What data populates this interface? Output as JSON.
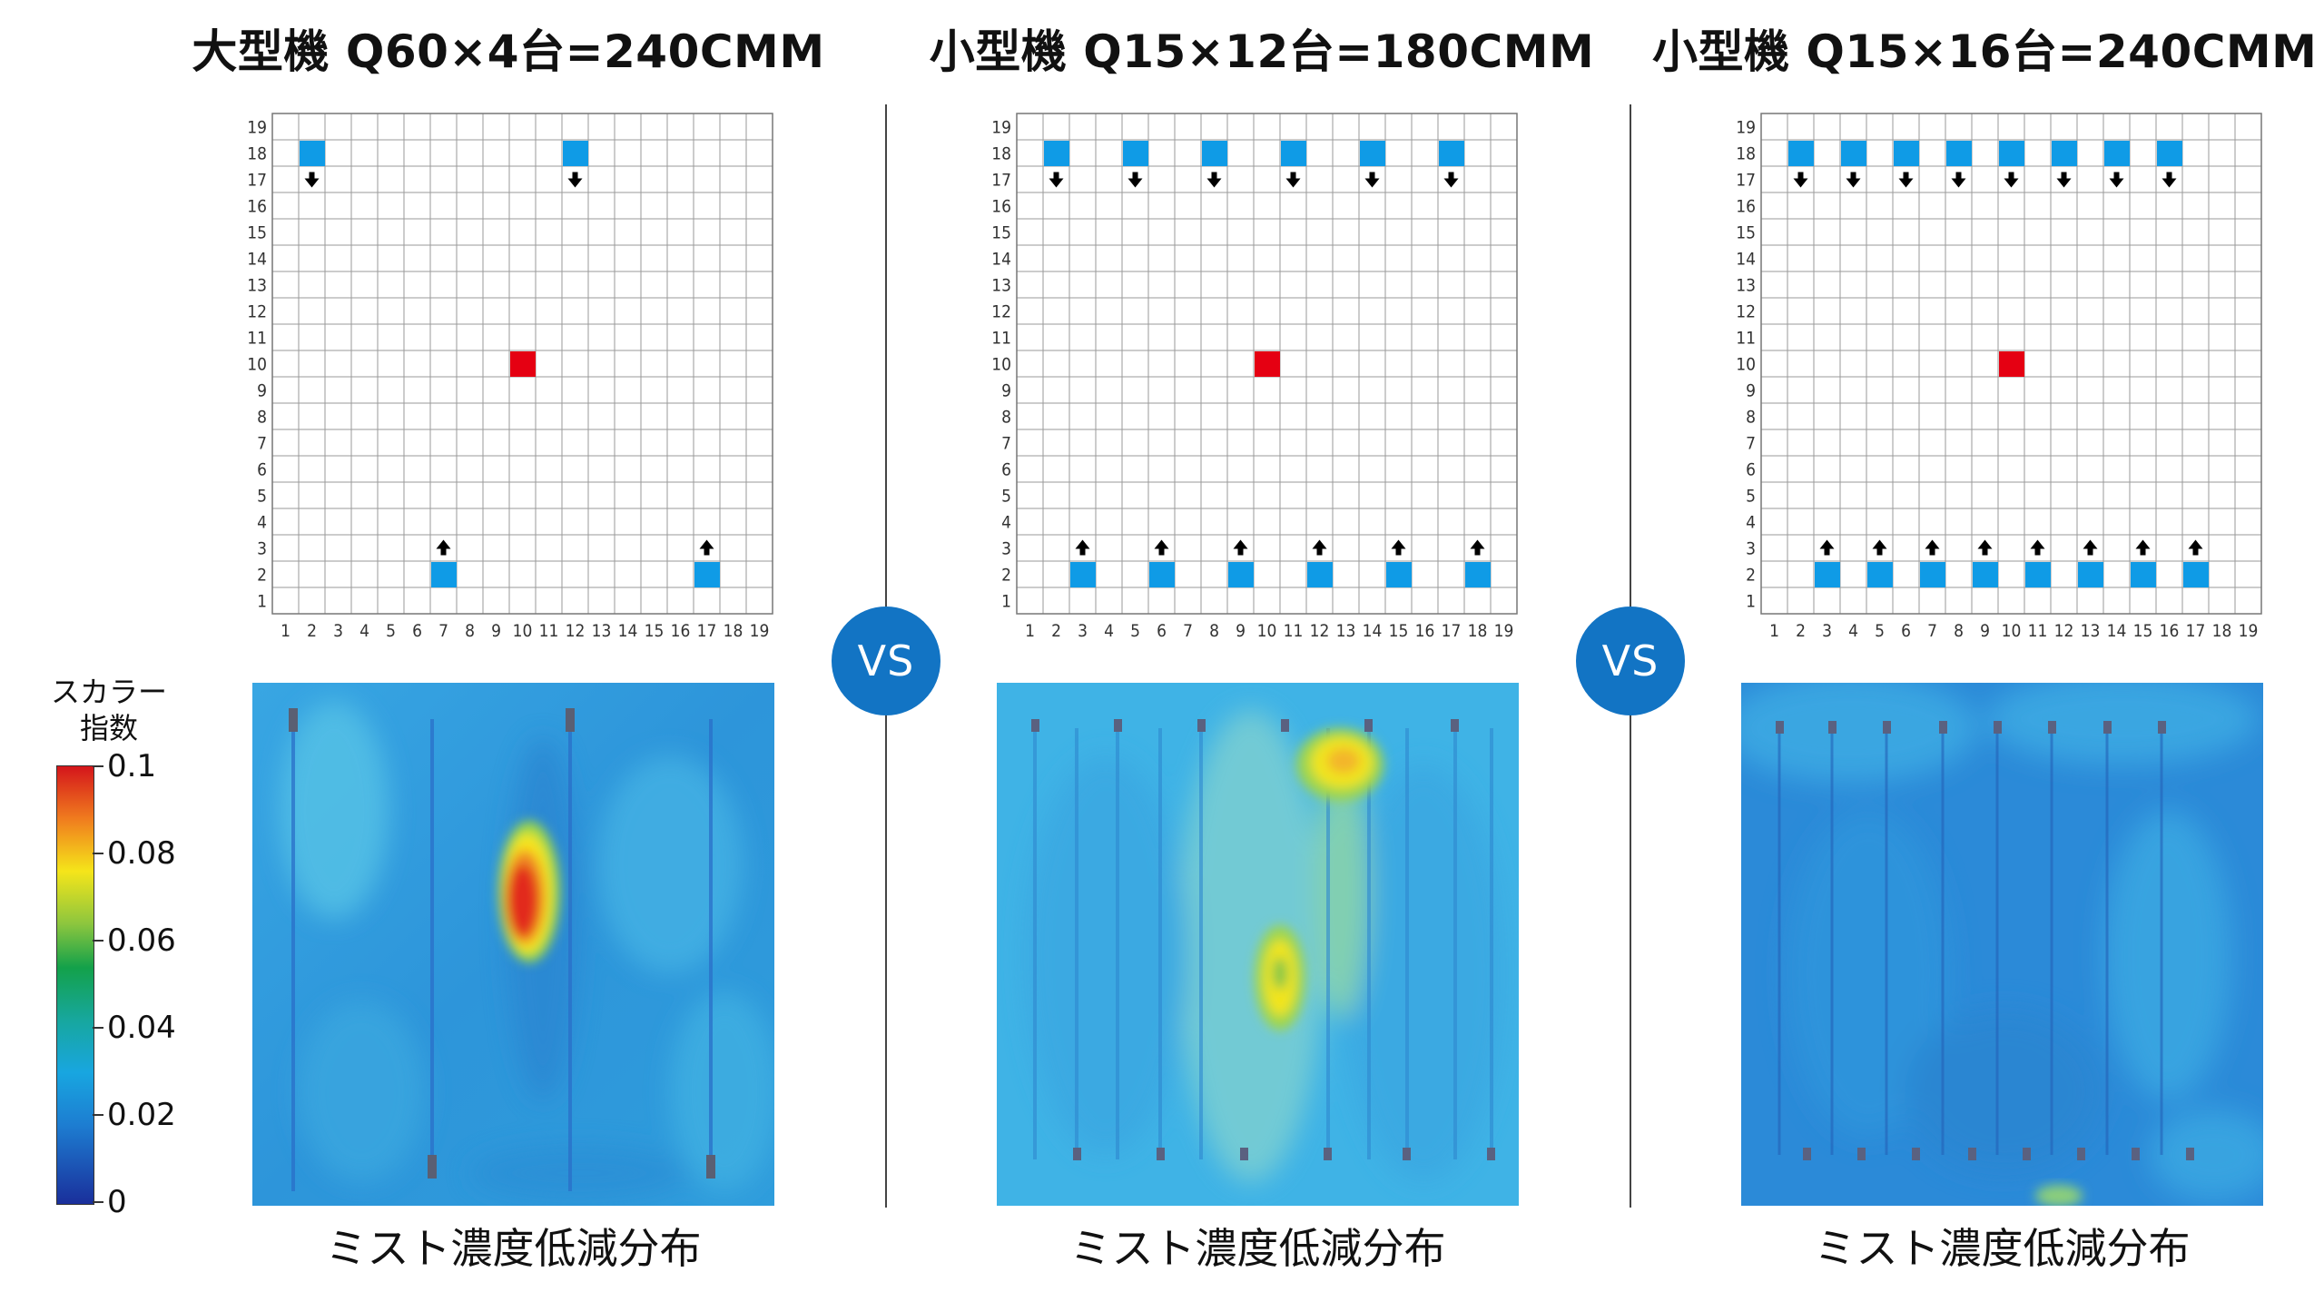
{
  "panels": [
    {
      "title": "大型機 Q60×4台=240CMM",
      "caption": "ミスト濃度低減分布",
      "blue_top": [
        2,
        12
      ],
      "blue_bottom": [
        7,
        17
      ],
      "red_cell": [
        10,
        10
      ]
    },
    {
      "title": "小型機 Q15×12台=180CMM",
      "caption": "ミスト濃度低減分布",
      "blue_top": [
        2,
        5,
        8,
        11,
        14,
        17
      ],
      "blue_bottom": [
        3,
        6,
        9,
        12,
        15,
        18
      ],
      "red_cell": [
        10,
        10
      ]
    },
    {
      "title": "小型機 Q15×16台=240CMM",
      "caption": "ミスト濃度低減分布",
      "blue_top": [
        2,
        4,
        6,
        8,
        10,
        12,
        14,
        16
      ],
      "blue_bottom": [
        3,
        5,
        7,
        9,
        11,
        13,
        15,
        17
      ],
      "red_cell": [
        10,
        10
      ]
    }
  ],
  "grid": {
    "x_labels": [
      "1",
      "2",
      "3",
      "4",
      "5",
      "6",
      "7",
      "8",
      "9",
      "10",
      "11",
      "12",
      "13",
      "14",
      "15",
      "16",
      "17",
      "18",
      "19"
    ],
    "y_labels": [
      "19",
      "18",
      "17",
      "16",
      "15",
      "14",
      "13",
      "12",
      "11",
      "10",
      "9",
      "8",
      "7",
      "6",
      "5",
      "4",
      "3",
      "2",
      "1"
    ]
  },
  "vs_label": "VS",
  "legend": {
    "title_line1": "スカラー",
    "title_line2": "指数",
    "ticks": [
      "0.1",
      "0.08",
      "0.06",
      "0.04",
      "0.02",
      "0"
    ]
  },
  "colors": {
    "outlet_blue": "#0f9be6",
    "source_red": "#e50012",
    "vs_badge": "#1274c4",
    "heatmap_base": "#2b95dc"
  }
}
